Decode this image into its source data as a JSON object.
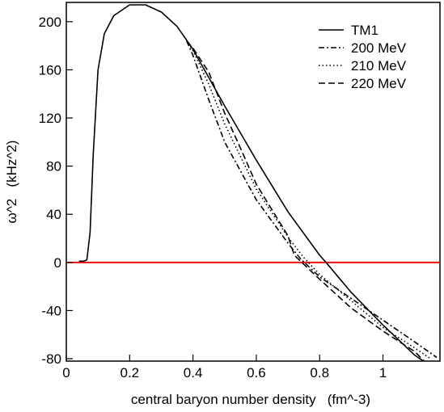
{
  "chart_data": {
    "type": "line",
    "xlabel": "central baryon number density   (fm^-3)",
    "ylabel": "ω^2   (kHz^2)",
    "xlim": [
      0,
      1.18
    ],
    "ylim": [
      -82,
      216
    ],
    "grid": false,
    "legend": "top-right",
    "x_ticks": [
      0,
      0.2,
      0.4,
      0.6,
      0.8,
      1
    ],
    "x_tick_labels": [
      "0",
      "0.2",
      "0.4",
      "0.6",
      "0.8",
      "1"
    ],
    "y_ticks": [
      -80,
      -40,
      0,
      40,
      80,
      120,
      160,
      200
    ],
    "y_tick_labels": [
      "-80",
      "-40",
      "0",
      "40",
      "80",
      "120",
      "160",
      "200"
    ],
    "series": [
      {
        "name": "TM1",
        "style": "solid",
        "x": [
          0.04,
          0.055,
          0.065,
          0.075,
          0.085,
          0.1,
          0.12,
          0.15,
          0.2,
          0.25,
          0.3,
          0.35,
          0.4,
          0.5,
          0.6,
          0.7,
          0.8,
          0.82,
          0.9,
          1.0,
          1.1,
          1.15
        ],
        "y": [
          1,
          1,
          2,
          25,
          90,
          160,
          190,
          205,
          214,
          214,
          208,
          196,
          177,
          130,
          85,
          42,
          6,
          0,
          -25,
          -52,
          -77,
          -86
        ]
      },
      {
        "name": "200 MeV",
        "style": "dashdot",
        "x": [
          0.38,
          0.4,
          0.45,
          0.5,
          0.6,
          0.7,
          0.74,
          0.8,
          0.9,
          1.0,
          1.1,
          1.17
        ],
        "y": [
          184,
          172,
          135,
          100,
          52,
          16,
          3,
          -12,
          -30,
          -48,
          -66,
          -79
        ]
      },
      {
        "name": "210 MeV",
        "style": "dotted",
        "x": [
          0.38,
          0.4,
          0.45,
          0.5,
          0.6,
          0.7,
          0.75,
          0.8,
          0.9,
          1.0,
          1.1,
          1.15
        ],
        "y": [
          184,
          176,
          148,
          115,
          61,
          21,
          4,
          -10,
          -32,
          -54,
          -71,
          -80
        ]
      },
      {
        "name": "220 MeV",
        "style": "dashed",
        "x": [
          0.38,
          0.4,
          0.45,
          0.5,
          0.55,
          0.6,
          0.7,
          0.72,
          0.8,
          0.9,
          1.0,
          1.1,
          1.13
        ],
        "y": [
          184,
          178,
          158,
          124,
          95,
          65,
          22,
          6,
          -14,
          -38,
          -57,
          -74,
          -82
        ]
      }
    ],
    "reference_line": {
      "y": 0,
      "color": "#ee1111"
    }
  }
}
